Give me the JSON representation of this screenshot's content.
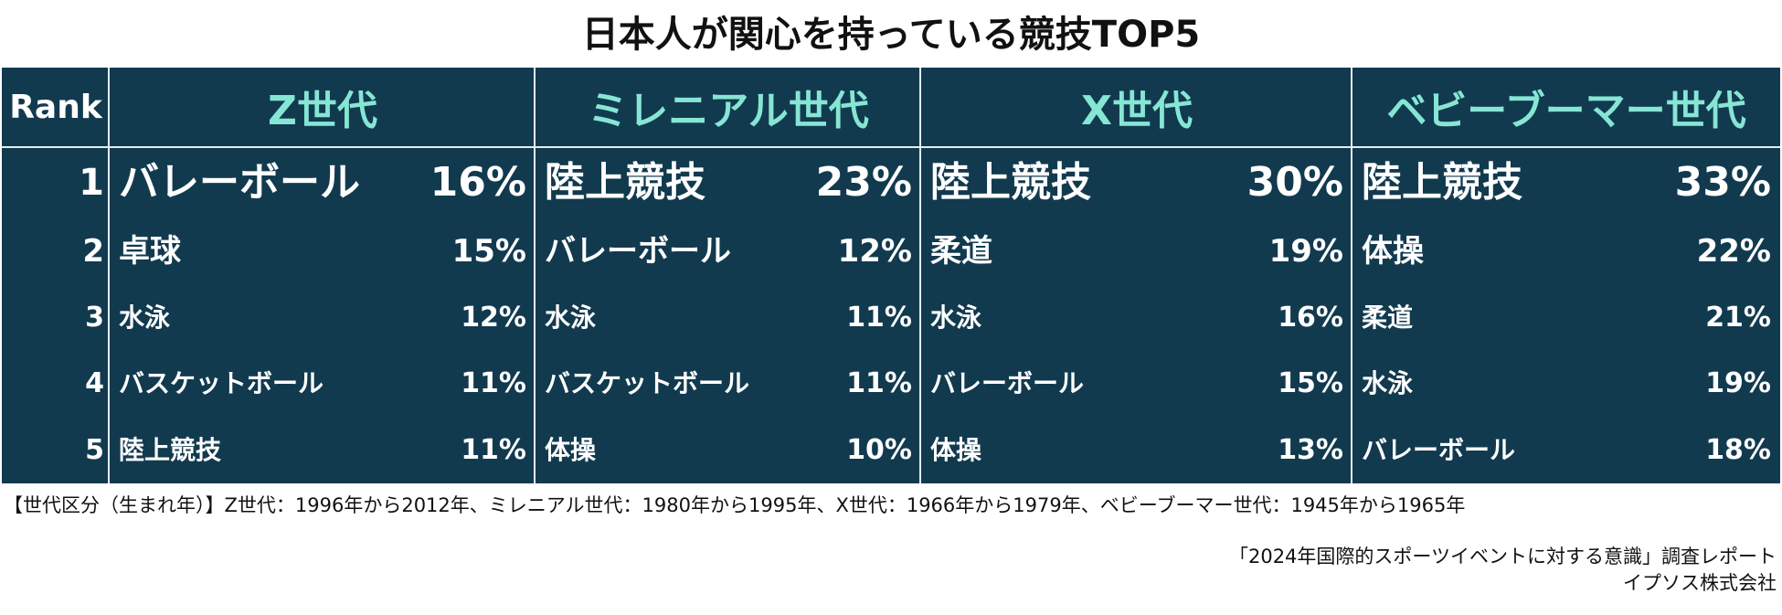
{
  "title": "日本人が関心を持っている競技TOP5",
  "chart_data": {
    "type": "table",
    "rank_header": "Rank",
    "generations": [
      "Z世代",
      "ミレニアル世代",
      "X世代",
      "ベビーブーマー世代"
    ],
    "rows": [
      {
        "rank": "1",
        "cells": [
          {
            "sport": "バレーボール",
            "value": 16,
            "label": "16%"
          },
          {
            "sport": "陸上競技",
            "value": 23,
            "label": "23%"
          },
          {
            "sport": "陸上競技",
            "value": 30,
            "label": "30%"
          },
          {
            "sport": "陸上競技",
            "value": 33,
            "label": "33%"
          }
        ]
      },
      {
        "rank": "2",
        "cells": [
          {
            "sport": "卓球",
            "value": 15,
            "label": "15%"
          },
          {
            "sport": "バレーボール",
            "value": 12,
            "label": "12%"
          },
          {
            "sport": "柔道",
            "value": 19,
            "label": "19%"
          },
          {
            "sport": "体操",
            "value": 22,
            "label": "22%"
          }
        ]
      },
      {
        "rank": "3",
        "cells": [
          {
            "sport": "水泳",
            "value": 12,
            "label": "12%"
          },
          {
            "sport": "水泳",
            "value": 11,
            "label": "11%"
          },
          {
            "sport": "水泳",
            "value": 16,
            "label": "16%"
          },
          {
            "sport": "柔道",
            "value": 21,
            "label": "21%"
          }
        ]
      },
      {
        "rank": "4",
        "cells": [
          {
            "sport": "バスケットボール",
            "value": 11,
            "label": "11%"
          },
          {
            "sport": "バスケットボール",
            "value": 11,
            "label": "11%"
          },
          {
            "sport": "バレーボール",
            "value": 15,
            "label": "15%"
          },
          {
            "sport": "水泳",
            "value": 19,
            "label": "19%"
          }
        ]
      },
      {
        "rank": "5",
        "cells": [
          {
            "sport": "陸上競技",
            "value": 11,
            "label": "11%"
          },
          {
            "sport": "体操",
            "value": 10,
            "label": "10%"
          },
          {
            "sport": "体操",
            "value": 13,
            "label": "13%"
          },
          {
            "sport": "バレーボール",
            "value": 18,
            "label": "18%"
          }
        ]
      }
    ]
  },
  "footnote": "【世代区分（生まれ年）】Z世代：1996年から2012年、ミレニアル世代：1980年から1995年、X世代：1966年から1979年、ベビーブーマー世代：1945年から1965年",
  "source_line1": "「2024年国際的スポーツイベントに対する意識」調査レポート",
  "source_line2": "イプソス株式会社",
  "colors": {
    "table_bg": "#123a4f",
    "header_text": "#86e6d4",
    "cell_text": "#ffffff"
  }
}
